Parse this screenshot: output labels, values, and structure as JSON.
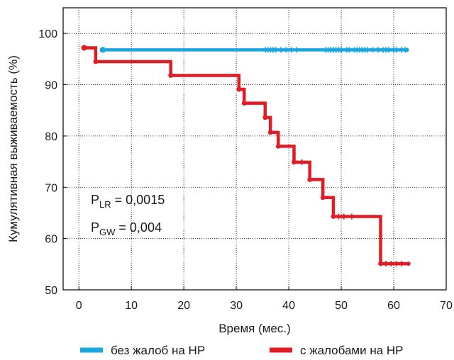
{
  "chart_data": {
    "type": "line",
    "subtype": "step (Kaplan-Meier)",
    "xlabel": "Время (мес.)",
    "ylabel": "Кумулятивная выживаемость (%)",
    "xlim": [
      -3,
      70
    ],
    "ylim": [
      50,
      105
    ],
    "xticks": [
      "0",
      "10",
      "20",
      "30",
      "40",
      "50",
      "60",
      "70"
    ],
    "yticks": [
      "50",
      "60",
      "70",
      "80",
      "90",
      "100"
    ],
    "grid": "dotted",
    "legend_position": "bottom",
    "annotations": [
      {
        "main": "P",
        "sub": "LR",
        "rest": " = 0,0015"
      },
      {
        "main": "P",
        "sub": "GW",
        "rest": " = 0,004"
      }
    ],
    "series": [
      {
        "name": "без жалоб на НР",
        "color": "#1aa7e0",
        "x": [
          4.5,
          62.5
        ],
        "y": [
          96.8,
          96.8
        ],
        "censored_x": [
          4.8,
          35.5,
          36,
          36.5,
          37,
          37.5,
          38.5,
          39.5,
          40.5,
          41.5,
          47,
          47.5,
          48,
          48.5,
          49,
          49.5,
          50,
          51,
          51.5,
          52.5,
          53,
          53.5,
          54,
          54.5,
          55,
          56,
          57,
          58,
          58.5,
          59,
          60,
          60.5,
          61.5,
          62.2
        ]
      },
      {
        "name": "с жалобами на НР",
        "color": "#e01c24",
        "x": [
          1,
          3.2,
          3.2,
          17.5,
          17.5,
          30.5,
          30.5,
          31.5,
          31.5,
          35.5,
          35.5,
          36.5,
          36.5,
          38,
          38,
          41,
          41,
          44,
          44,
          46.5,
          46.5,
          48.5,
          48.5,
          57.5,
          57.5,
          62.8
        ],
        "y": [
          97.2,
          97.2,
          94.5,
          94.5,
          91.8,
          91.8,
          89.1,
          89.1,
          86.4,
          86.4,
          83.6,
          83.6,
          80.7,
          80.7,
          78.0,
          78.0,
          74.9,
          74.9,
          71.5,
          71.5,
          68.0,
          68.0,
          64.3,
          64.3,
          55.1,
          55.1
        ],
        "censored_x": [
          42.5,
          49.5,
          50.5,
          52,
          58.5,
          59.5,
          60.5,
          61.5
        ]
      }
    ]
  }
}
